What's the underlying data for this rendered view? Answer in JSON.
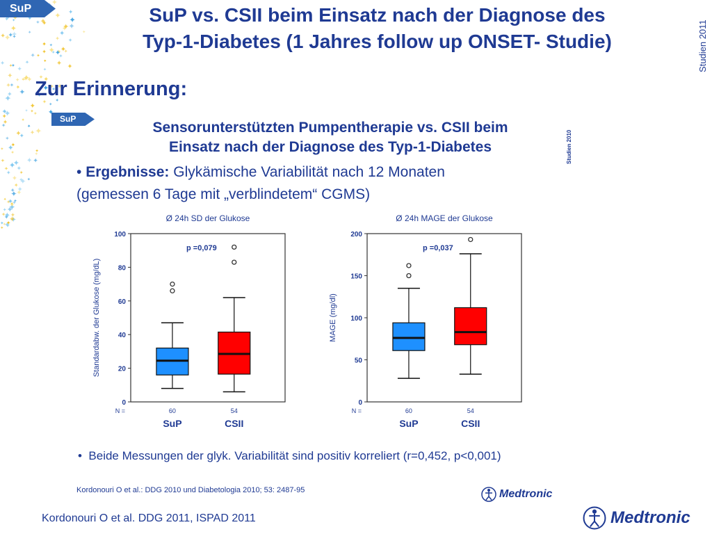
{
  "header": {
    "tag": "SuP",
    "title_line1": "SuP vs. CSII beim Einsatz nach der Diagnose des",
    "title_line2": "Typ-1-Diabetes (1 Jahres follow up ONSET- Studie)",
    "side_label": "Studien 2011"
  },
  "subtitle": "Zur Erinnerung:",
  "inner_slide": {
    "tag": "SuP",
    "side_label": "Studien 2010",
    "title_line1": "Sensorunterstützten Pumpentherapie vs. CSII beim",
    "title_line2": "Einsatz nach der Diagnose des Typ-1-Diabetes",
    "results_bold": "Ergebnisse:",
    "results_line1": "Glykämische Variabilität nach 12 Monaten",
    "results_line2": "(gemessen 6 Tage mit „verblindetem“ CGMS)",
    "note": "Beide Messungen der glyk. Variabilität sind positiv korreliert (r=0,452, p<0,001)",
    "citation": "Kordonouri O et al.: DDG 2010 und Diabetologia 2010; 53: 2487-95",
    "logo": "Medtronic"
  },
  "footer": {
    "citation": "Kordonouri O et al. DDG 2011, ISPAD 2011",
    "logo": "Medtronic"
  },
  "colors": {
    "title": "#1f3a93",
    "tag": "#2f66b3",
    "sup_box": "#1e90ff",
    "csii_box": "#ff0000"
  },
  "chart_data": [
    {
      "type": "box",
      "title": "Ø 24h SD der Glukose",
      "ylabel": "Standardabw. der Glukose (mg/dL)",
      "ylim": [
        0,
        100
      ],
      "yticks": [
        0,
        20,
        40,
        60,
        80,
        100
      ],
      "p_value": "p =0,079",
      "n_label": "N =",
      "categories": [
        "SuP",
        "CSII"
      ],
      "n": [
        "60",
        "54"
      ],
      "series": [
        {
          "name": "SuP",
          "color": "#1e90ff",
          "whisker_low": 8,
          "q1": 16,
          "median": 24.5,
          "q3": 32,
          "whisker_high": 47,
          "outliers": [
            66,
            70
          ]
        },
        {
          "name": "CSII",
          "color": "#ff0000",
          "whisker_low": 6,
          "q1": 16.5,
          "median": 28.5,
          "q3": 41.5,
          "whisker_high": 62,
          "outliers": [
            83,
            92
          ]
        }
      ]
    },
    {
      "type": "box",
      "title": "Ø 24h MAGE der Glukose",
      "ylabel": "MAGE (mg/dl)",
      "ylim": [
        0,
        200
      ],
      "yticks": [
        0,
        50,
        100,
        150,
        200
      ],
      "p_value": "p =0,037",
      "n_label": "N =",
      "categories": [
        "SuP",
        "CSII"
      ],
      "n": [
        "60",
        "54"
      ],
      "series": [
        {
          "name": "SuP",
          "color": "#1e90ff",
          "whisker_low": 28,
          "q1": 61,
          "median": 76,
          "q3": 94,
          "whisker_high": 135,
          "outliers": [
            150,
            162
          ]
        },
        {
          "name": "CSII",
          "color": "#ff0000",
          "whisker_low": 33,
          "q1": 68,
          "median": 83,
          "q3": 112,
          "whisker_high": 176,
          "outliers": [
            193
          ]
        }
      ]
    }
  ]
}
